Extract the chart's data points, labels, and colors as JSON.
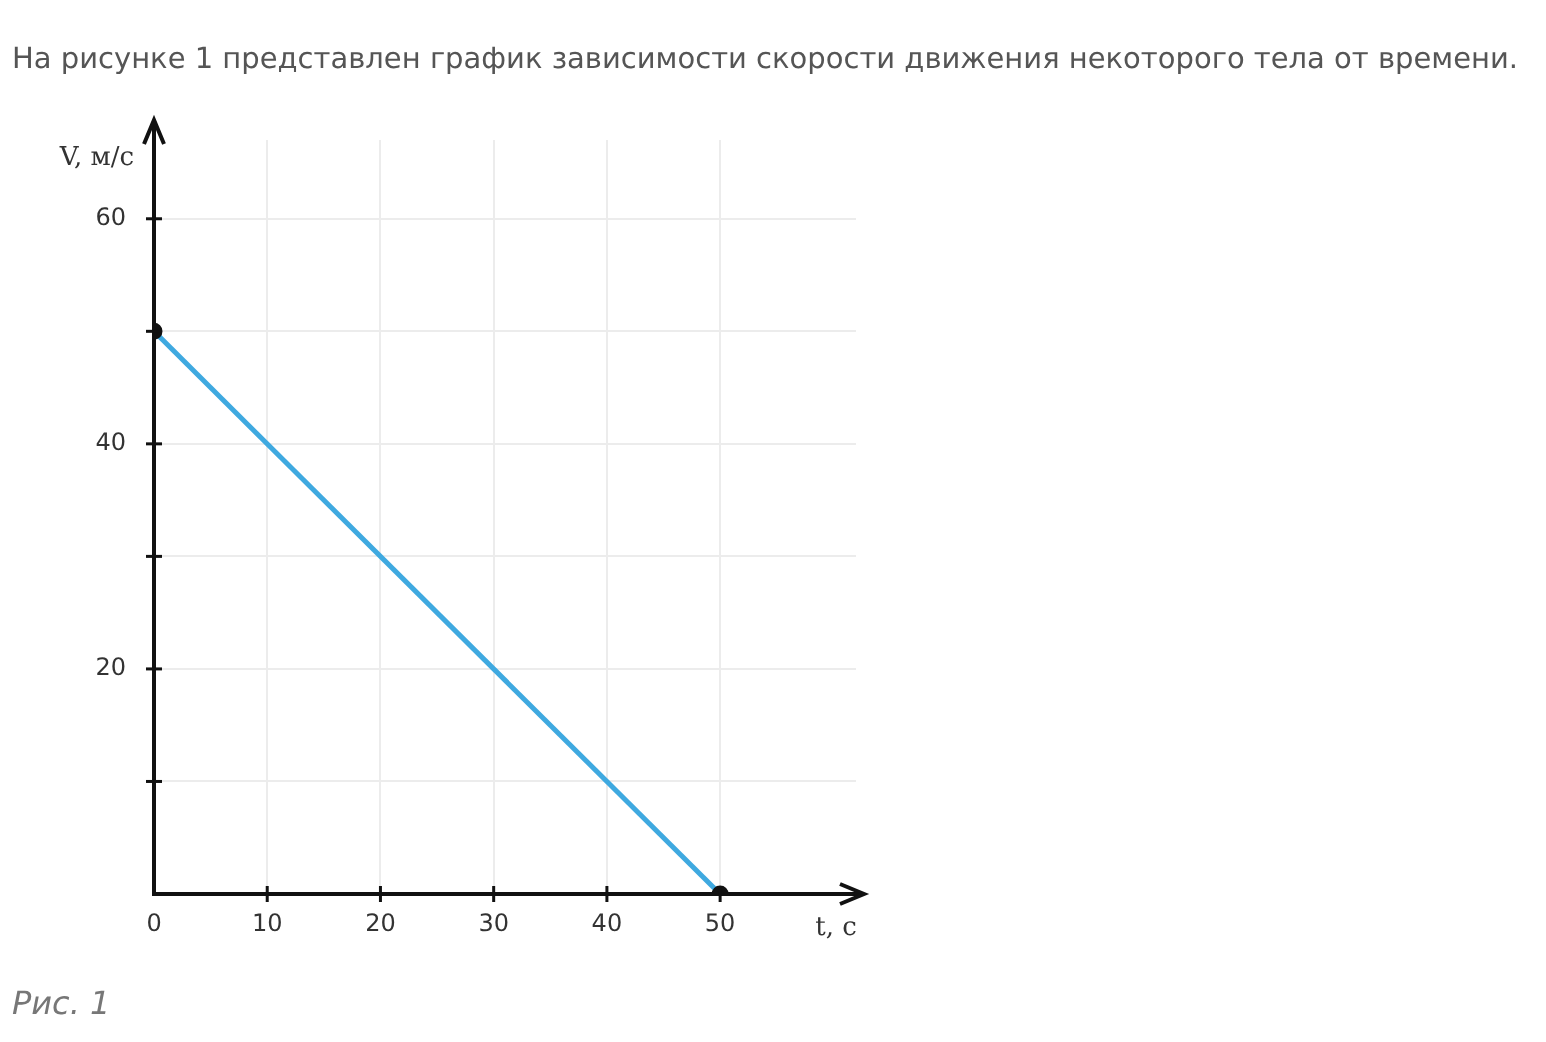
{
  "chart_data": {
    "type": "line",
    "title": "На рисунке 1 представлен график зависимости скорости движения некоторого тела от времени.",
    "xlabel": "t, с",
    "ylabel": "V, м/с",
    "x": [
      0,
      50
    ],
    "series": [
      {
        "color": "#3fa9e0",
        "values": [
          50,
          0
        ]
      }
    ],
    "xlim": [
      0,
      62
    ],
    "ylim": [
      0,
      67
    ],
    "xticks": [
      0,
      10,
      20,
      30,
      40,
      50
    ],
    "yticks": [
      {
        "value": 10,
        "label": null
      },
      20,
      {
        "value": 30,
        "label": null
      },
      40,
      {
        "value": 50,
        "label": null
      },
      60
    ],
    "grid": true,
    "marker": "circle",
    "annotations": [
      "Рис. 1"
    ]
  }
}
